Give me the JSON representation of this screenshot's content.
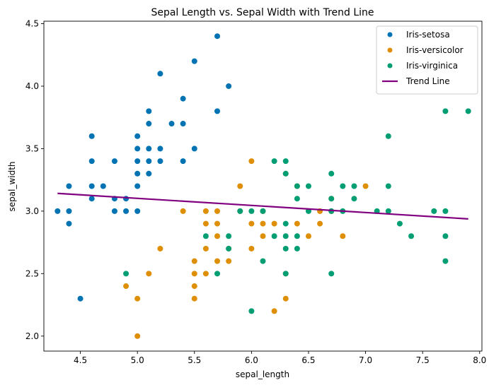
{
  "chart_data": {
    "type": "scatter",
    "title": "Sepal Length vs. Sepal Width with Trend Line",
    "xlabel": "sepal_length",
    "ylabel": "sepal_width",
    "xlim": [
      4.18,
      8.02
    ],
    "ylim": [
      1.88,
      4.52
    ],
    "xticks": [
      4.5,
      5.0,
      5.5,
      6.0,
      6.5,
      7.0,
      7.5,
      8.0
    ],
    "yticks": [
      2.0,
      2.5,
      3.0,
      3.5,
      4.0,
      4.5
    ],
    "xtick_labels": [
      "4.5",
      "5.0",
      "5.5",
      "6.0",
      "6.5",
      "7.0",
      "7.5",
      "8.0"
    ],
    "ytick_labels": [
      "2.0",
      "2.5",
      "3.0",
      "3.5",
      "4.0",
      "4.5"
    ],
    "grid": false,
    "legend_position": "top-right",
    "series": [
      {
        "name": "Iris-setosa",
        "color": "#0173b2",
        "points": [
          [
            4.3,
            3.0
          ],
          [
            4.4,
            3.2
          ],
          [
            4.4,
            3.0
          ],
          [
            4.4,
            2.9
          ],
          [
            4.5,
            2.3
          ],
          [
            4.6,
            3.6
          ],
          [
            4.6,
            3.4
          ],
          [
            4.6,
            3.2
          ],
          [
            4.6,
            3.1
          ],
          [
            4.7,
            3.2
          ],
          [
            4.8,
            3.4
          ],
          [
            4.8,
            3.1
          ],
          [
            4.8,
            3.0
          ],
          [
            4.9,
            3.1
          ],
          [
            4.9,
            3.0
          ],
          [
            5.0,
            3.6
          ],
          [
            5.0,
            3.5
          ],
          [
            5.0,
            3.4
          ],
          [
            5.0,
            3.3
          ],
          [
            5.0,
            3.2
          ],
          [
            5.0,
            3.0
          ],
          [
            5.1,
            3.8
          ],
          [
            5.1,
            3.7
          ],
          [
            5.1,
            3.5
          ],
          [
            5.1,
            3.4
          ],
          [
            5.1,
            3.3
          ],
          [
            5.2,
            4.1
          ],
          [
            5.2,
            3.5
          ],
          [
            5.2,
            3.4
          ],
          [
            5.3,
            3.7
          ],
          [
            5.4,
            3.9
          ],
          [
            5.4,
            3.7
          ],
          [
            5.4,
            3.4
          ],
          [
            5.5,
            4.2
          ],
          [
            5.5,
            3.5
          ],
          [
            5.7,
            4.4
          ],
          [
            5.7,
            3.8
          ],
          [
            5.8,
            4.0
          ]
        ]
      },
      {
        "name": "Iris-versicolor",
        "color": "#de8f05",
        "points": [
          [
            4.9,
            2.4
          ],
          [
            5.0,
            2.3
          ],
          [
            5.0,
            2.0
          ],
          [
            5.1,
            2.5
          ],
          [
            5.2,
            2.7
          ],
          [
            5.4,
            3.0
          ],
          [
            5.5,
            2.6
          ],
          [
            5.5,
            2.5
          ],
          [
            5.5,
            2.4
          ],
          [
            5.5,
            2.3
          ],
          [
            5.6,
            3.0
          ],
          [
            5.6,
            2.9
          ],
          [
            5.6,
            2.7
          ],
          [
            5.6,
            2.5
          ],
          [
            5.7,
            3.0
          ],
          [
            5.7,
            2.9
          ],
          [
            5.7,
            2.8
          ],
          [
            5.7,
            2.6
          ],
          [
            5.8,
            2.7
          ],
          [
            5.8,
            2.6
          ],
          [
            5.9,
            3.2
          ],
          [
            5.9,
            3.0
          ],
          [
            6.0,
            3.4
          ],
          [
            6.0,
            2.9
          ],
          [
            6.0,
            2.7
          ],
          [
            6.1,
            3.0
          ],
          [
            6.1,
            2.9
          ],
          [
            6.1,
            2.8
          ],
          [
            6.2,
            2.9
          ],
          [
            6.2,
            2.2
          ],
          [
            6.3,
            3.3
          ],
          [
            6.3,
            2.5
          ],
          [
            6.3,
            2.3
          ],
          [
            6.4,
            3.2
          ],
          [
            6.4,
            2.9
          ],
          [
            6.5,
            2.8
          ],
          [
            6.6,
            3.0
          ],
          [
            6.6,
            2.9
          ],
          [
            6.7,
            3.1
          ],
          [
            6.7,
            3.0
          ],
          [
            6.8,
            2.8
          ],
          [
            7.0,
            3.2
          ]
        ]
      },
      {
        "name": "Iris-virginica",
        "color": "#029e73",
        "points": [
          [
            4.9,
            2.5
          ],
          [
            5.6,
            2.8
          ],
          [
            5.7,
            2.5
          ],
          [
            5.8,
            2.8
          ],
          [
            5.8,
            2.7
          ],
          [
            5.9,
            3.0
          ],
          [
            6.0,
            3.0
          ],
          [
            6.0,
            2.2
          ],
          [
            6.1,
            3.0
          ],
          [
            6.1,
            2.6
          ],
          [
            6.2,
            3.4
          ],
          [
            6.2,
            2.8
          ],
          [
            6.3,
            3.4
          ],
          [
            6.3,
            3.3
          ],
          [
            6.3,
            2.9
          ],
          [
            6.3,
            2.8
          ],
          [
            6.3,
            2.7
          ],
          [
            6.3,
            2.5
          ],
          [
            6.4,
            3.2
          ],
          [
            6.4,
            3.1
          ],
          [
            6.4,
            2.8
          ],
          [
            6.4,
            2.7
          ],
          [
            6.5,
            3.2
          ],
          [
            6.5,
            3.0
          ],
          [
            6.7,
            3.3
          ],
          [
            6.7,
            3.1
          ],
          [
            6.7,
            3.0
          ],
          [
            6.7,
            2.5
          ],
          [
            6.8,
            3.2
          ],
          [
            6.8,
            3.0
          ],
          [
            6.9,
            3.2
          ],
          [
            6.9,
            3.1
          ],
          [
            7.1,
            3.0
          ],
          [
            7.2,
            3.6
          ],
          [
            7.2,
            3.2
          ],
          [
            7.2,
            3.0
          ],
          [
            7.3,
            2.9
          ],
          [
            7.4,
            2.8
          ],
          [
            7.6,
            3.0
          ],
          [
            7.7,
            3.8
          ],
          [
            7.7,
            3.0
          ],
          [
            7.7,
            2.8
          ],
          [
            7.7,
            2.6
          ],
          [
            7.9,
            3.8
          ]
        ]
      }
    ],
    "trend_line": {
      "name": "Trend Line",
      "color": "#800080",
      "points": [
        [
          4.3,
          3.142
        ],
        [
          7.9,
          2.938
        ]
      ]
    }
  }
}
